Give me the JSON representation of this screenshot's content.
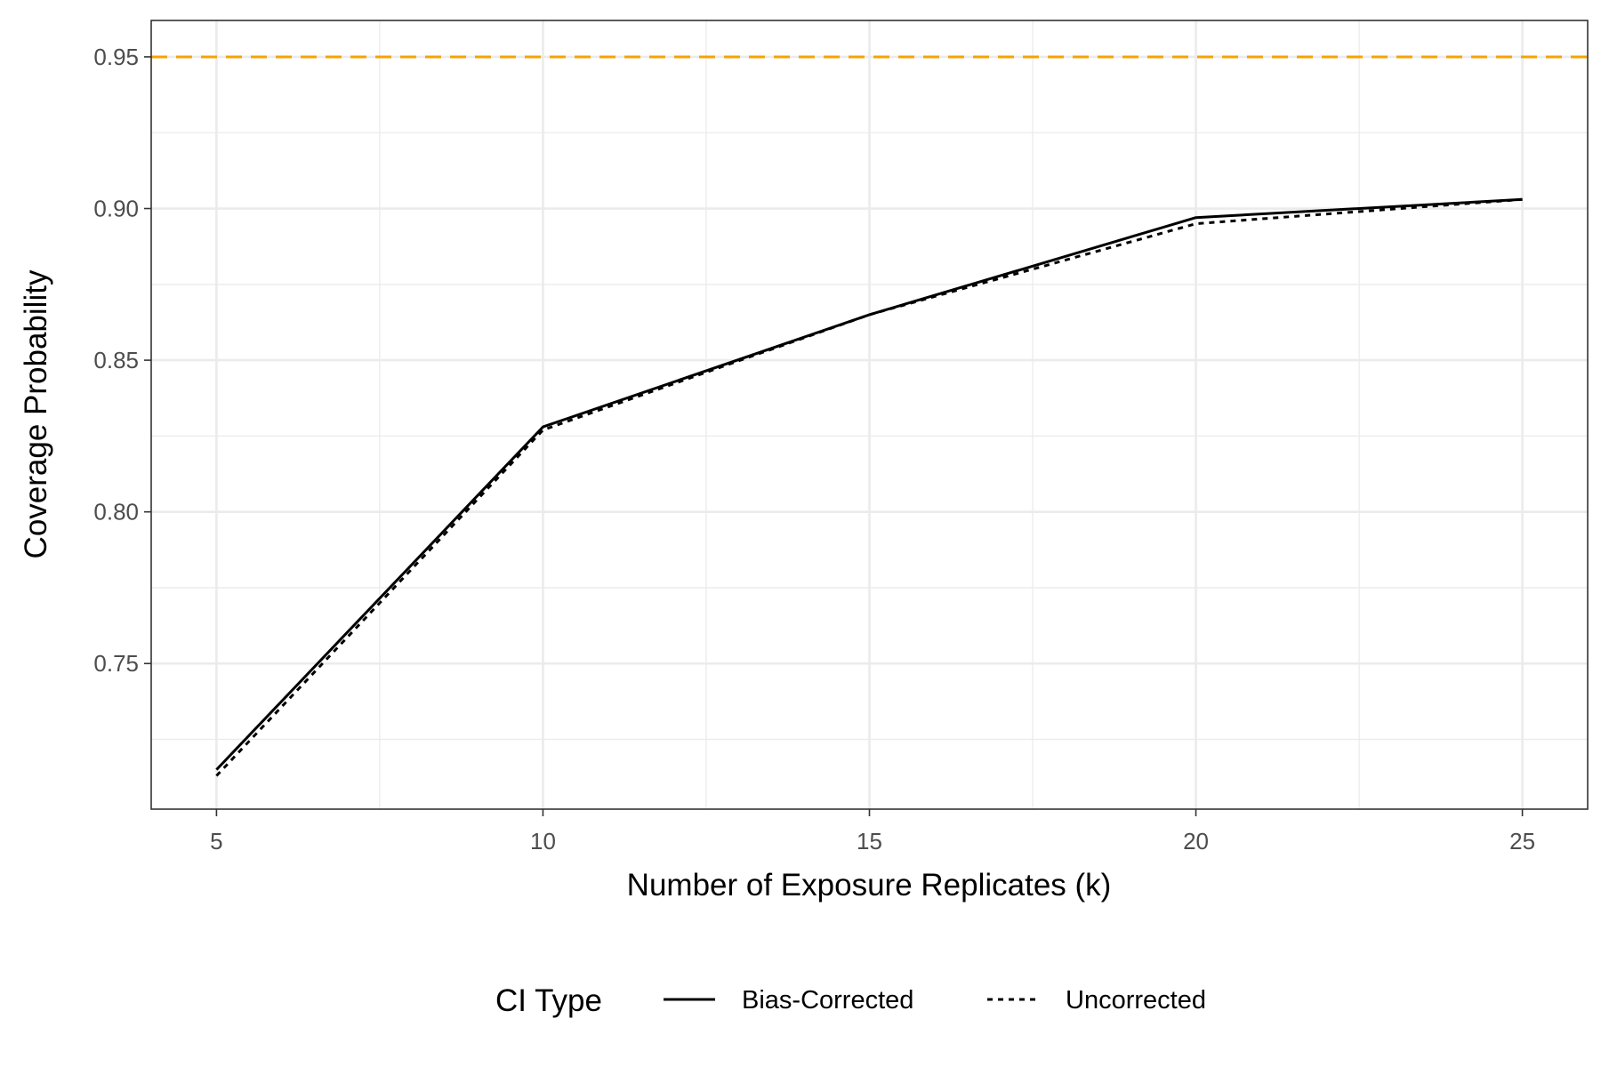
{
  "chart_data": {
    "type": "line",
    "title": "",
    "xlabel": "Number of Exposure Replicates (k)",
    "ylabel": "Coverage Probability",
    "x": [
      5,
      10,
      15,
      20,
      25
    ],
    "xlim": [
      4.0,
      26.0
    ],
    "ylim": [
      0.702,
      0.962
    ],
    "x_ticks": [
      5,
      10,
      15,
      20,
      25
    ],
    "x_tick_labels": [
      "5",
      "10",
      "15",
      "20",
      "25"
    ],
    "y_ticks": [
      0.75,
      0.8,
      0.85,
      0.9,
      0.95
    ],
    "y_tick_labels": [
      "0.75",
      "0.80",
      "0.85",
      "0.90",
      "0.95"
    ],
    "grid": true,
    "legend": {
      "title": "CI Type",
      "position": "bottom"
    },
    "series": [
      {
        "name": "Bias-Corrected",
        "dash": "solid",
        "color": "#000000",
        "values": [
          0.715,
          0.828,
          0.865,
          0.897,
          0.903
        ]
      },
      {
        "name": "Uncorrected",
        "dash": "dotted",
        "color": "#000000",
        "values": [
          0.713,
          0.827,
          0.865,
          0.895,
          0.903
        ]
      }
    ],
    "reference_line": {
      "y": 0.95,
      "color": "#F5A300",
      "dash": "dashed"
    }
  }
}
